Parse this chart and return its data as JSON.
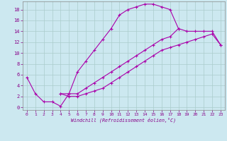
{
  "xlabel": "Windchill (Refroidissement éolien,°C)",
  "bg_color": "#cce8f0",
  "line_color": "#aa00aa",
  "grid_color": "#aacccc",
  "xlim": [
    -0.5,
    23.5
  ],
  "ylim": [
    -0.5,
    19.5
  ],
  "xticks": [
    0,
    1,
    2,
    3,
    4,
    5,
    6,
    7,
    8,
    9,
    10,
    11,
    12,
    13,
    14,
    15,
    16,
    17,
    18,
    19,
    20,
    21,
    22,
    23
  ],
  "yticks": [
    0,
    2,
    4,
    6,
    8,
    10,
    12,
    14,
    16,
    18
  ],
  "series": [
    {
      "x": [
        0,
        1,
        2,
        3,
        4,
        5,
        6,
        7,
        8,
        9,
        10,
        11,
        12,
        13,
        14,
        15,
        16,
        17,
        18
      ],
      "y": [
        5.5,
        2.5,
        1.0,
        1.0,
        0.2,
        2.5,
        6.5,
        8.5,
        10.5,
        12.5,
        14.5,
        17.0,
        18.0,
        18.5,
        19.0,
        19.0,
        18.5,
        18.0,
        14.5
      ]
    },
    {
      "x": [
        4,
        5,
        6,
        7,
        8,
        9,
        10,
        11,
        12,
        13,
        14,
        15,
        16,
        17,
        18,
        19,
        20,
        21,
        22,
        23
      ],
      "y": [
        2.5,
        2.5,
        2.5,
        3.5,
        4.5,
        5.5,
        6.5,
        7.5,
        8.5,
        9.5,
        10.5,
        11.5,
        12.5,
        13.0,
        14.5,
        14.0,
        14.0,
        14.0,
        14.0,
        11.5
      ]
    },
    {
      "x": [
        4,
        5,
        6,
        7,
        8,
        9,
        10,
        11,
        12,
        13,
        14,
        15,
        16,
        17,
        18,
        19,
        20,
        21,
        22,
        23
      ],
      "y": [
        2.5,
        2.0,
        2.0,
        2.5,
        3.0,
        3.5,
        4.5,
        5.5,
        6.5,
        7.5,
        8.5,
        9.5,
        10.5,
        11.0,
        11.5,
        12.0,
        12.5,
        13.0,
        13.5,
        11.5
      ]
    }
  ]
}
